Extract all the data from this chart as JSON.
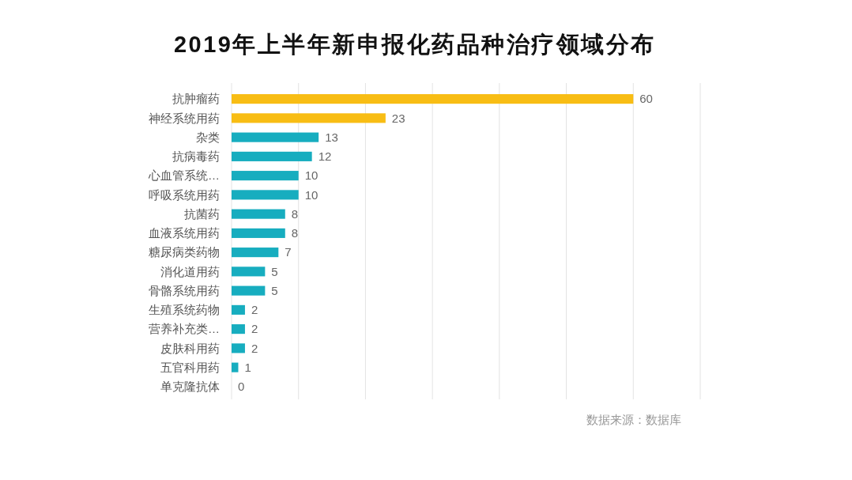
{
  "chart_data": {
    "type": "bar",
    "orientation": "horizontal",
    "title": "2019年上半年新申报化药品种治疗领域分布",
    "categories": [
      "抗肿瘤药",
      "神经系统用药",
      "杂类",
      "抗病毒药",
      "心血管系统…",
      "呼吸系统用药",
      "抗菌药",
      "血液系统用药",
      "糖尿病类药物",
      "消化道用药",
      "骨骼系统用药",
      "生殖系统药物",
      "营养补充类…",
      "皮肤科用药",
      "五官科用药",
      "单克隆抗体"
    ],
    "values": [
      60,
      23,
      13,
      12,
      10,
      10,
      8,
      8,
      7,
      5,
      5,
      2,
      2,
      2,
      1,
      0
    ],
    "colors": [
      "#f8bd14",
      "#f8bd14",
      "#17adbf",
      "#17adbf",
      "#17adbf",
      "#17adbf",
      "#17adbf",
      "#17adbf",
      "#17adbf",
      "#17adbf",
      "#17adbf",
      "#17adbf",
      "#17adbf",
      "#17adbf",
      "#17adbf",
      "#17adbf"
    ],
    "xlim": [
      0,
      70
    ],
    "xticks": [
      {
        "value": 0,
        "label": null
      },
      {
        "value": 10,
        "label": null
      },
      {
        "value": 20,
        "label": null
      },
      {
        "value": 30,
        "label": null
      },
      {
        "value": 40,
        "label": null
      },
      {
        "value": 50,
        "label": null
      },
      {
        "value": 60,
        "label": null
      },
      {
        "value": 70,
        "label": null
      }
    ],
    "grid": "x",
    "tick_labels": "y",
    "data_labels": true,
    "annotations": [
      "数据来源：数据库"
    ]
  }
}
